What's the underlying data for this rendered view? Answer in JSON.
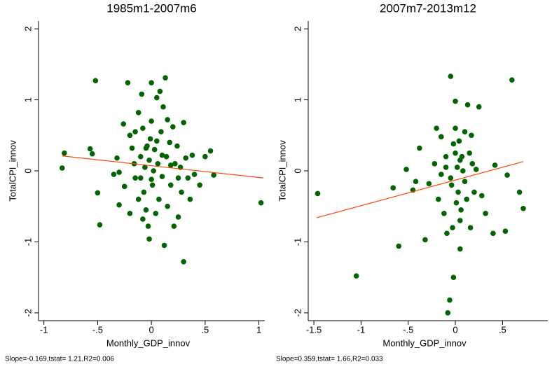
{
  "chart_data": [
    {
      "type": "scatter",
      "title": "1985m1-2007m6",
      "x_label": "Monthly_GDP_innov",
      "y_label": "TotalCPI_innov",
      "note": "Slope=-0.169,tstat= 1.21,R2=0.006",
      "xlim": [
        -1.05,
        1.055
      ],
      "ylim": [
        -2.11,
        2.11
      ],
      "xticks": [
        -1,
        {
          "value": -0.5,
          "label": "-.5"
        },
        0,
        {
          "value": 0.5,
          "label": ".5"
        },
        1
      ],
      "yticks": [
        -2,
        -1,
        0,
        1,
        2
      ],
      "series": [
        {
          "color": "#006400",
          "x": [
            -0.83,
            -0.81,
            -0.57,
            -0.55,
            -0.52,
            -0.5,
            -0.48,
            -0.32,
            -0.3,
            -0.3,
            -0.26,
            -0.22,
            -0.2,
            -0.18,
            -0.16,
            -0.15,
            -0.12,
            -0.12,
            -0.1,
            -0.1,
            -0.09,
            -0.08,
            -0.07,
            -0.06,
            -0.05,
            -0.04,
            -0.03,
            -0.02,
            -0.02,
            -0.01,
            0,
            0,
            0.01,
            0.02,
            0.03,
            0.04,
            0.05,
            0.06,
            0.07,
            0.08,
            0.09,
            0.1,
            0.11,
            0.12,
            0.13,
            0.14,
            0.15,
            0.17,
            0.18,
            0.2,
            0.21,
            0.22,
            0.24,
            0.25,
            0.27,
            0.28,
            0.3,
            0.3,
            0.32,
            0.34,
            0.36,
            0.38,
            0.4,
            0.45,
            0.5,
            0.55,
            0.58,
            1.02,
            -0.25,
            -0.2,
            -0.15,
            0,
            0.05,
            -0.08,
            0.1,
            0.18,
            0.25,
            -0.35,
            0.15,
            -0.05
          ],
          "values": [
            0.04,
            0.25,
            0.31,
            0.24,
            1.27,
            -0.31,
            -0.76,
            0.18,
            -0.02,
            -0.48,
            0.66,
            1.24,
            0.5,
            0.32,
            0.1,
            -0.1,
            0.82,
            -0.4,
            -0.1,
            0.2,
            1.08,
            0.6,
            -0.3,
            0.05,
            -0.55,
            0.35,
            -0.78,
            0.15,
            -0.96,
            0.45,
            1.24,
            0.7,
            -0.2,
            0,
            0.3,
            -0.6,
            1.03,
            0.1,
            -0.4,
            1.12,
            0.55,
            -0.08,
            0.9,
            -1.05,
            1.31,
            0.2,
            -0.5,
            0.4,
            -0.2,
            0.62,
            -0.78,
            0.1,
            0.35,
            -0.65,
            0.05,
            -0.3,
            0.68,
            -1.28,
            0.18,
            -0.1,
            -0.4,
            0.22,
            -0.05,
            -0.2,
            0.2,
            0.28,
            -0.06,
            -0.45,
            -0.22,
            -0.6,
            0.55,
            -0.12,
            0.42,
            -0.68,
            0.22,
            0.08,
            -0.1,
            -0.05,
            0.72,
            0.32
          ]
        }
      ],
      "fit_line": {
        "color": "#ff4500",
        "x": [
          -0.83,
          1.04
        ],
        "values": [
          0.21,
          -0.1
        ]
      }
    },
    {
      "type": "scatter",
      "title": "2007m7-2013m12",
      "x_label": "Monthly_GDP_innov",
      "y_label": "TotalCPI_innov",
      "note": "Slope=0.359,tstat= 1.66,R2=0.033",
      "xlim": [
        -1.56,
        0.98
      ],
      "ylim": [
        -2.11,
        2.11
      ],
      "xticks": [
        -1.5,
        -1,
        {
          "value": -0.5,
          "label": "-.5"
        },
        0,
        {
          "value": 0.5,
          "label": ".5"
        }
      ],
      "yticks": [
        -2,
        -1,
        0,
        1,
        2
      ],
      "series": [
        {
          "color": "#006400",
          "x": [
            -1.46,
            -1.05,
            -0.66,
            -0.6,
            -0.52,
            -0.45,
            -0.42,
            -0.38,
            -0.32,
            -0.28,
            -0.22,
            -0.2,
            -0.18,
            -0.15,
            -0.12,
            -0.1,
            -0.09,
            -0.08,
            -0.06,
            -0.05,
            -0.04,
            -0.03,
            -0.02,
            -0.02,
            0,
            0,
            0.01,
            0.02,
            0.03,
            0.04,
            0.05,
            0.05,
            0.06,
            0.07,
            0.08,
            0.1,
            0.12,
            0.13,
            0.15,
            0.16,
            0.17,
            0.18,
            0.2,
            0.22,
            0.25,
            0.28,
            0.32,
            0.4,
            0.42,
            0.53,
            0.55,
            0.6,
            0.68,
            0.72,
            -0.05,
            0.1,
            -0.15,
            0,
            0.05,
            -0.1
          ],
          "values": [
            -0.32,
            -1.48,
            -0.24,
            -1.06,
            0.02,
            -0.27,
            -0.15,
            0.32,
            -0.97,
            -0.18,
            0.1,
            0.6,
            -0.4,
            0.48,
            -0.6,
            0.2,
            -0.88,
            -2,
            -1.82,
            1.33,
            -0.2,
            -0.8,
            0.38,
            -1.5,
            0.98,
            0.6,
            -0.45,
            0.05,
            -0.3,
            0.42,
            -0.7,
            -1.1,
            -0.55,
            0.2,
            0,
            0.55,
            -0.4,
            0.93,
            0.25,
            -0.8,
            0.5,
            0.1,
            -0.3,
            0.02,
            0.9,
            -0.35,
            -0.6,
            -0.88,
            0.08,
            -0.85,
            -0.06,
            1.28,
            -0.3,
            -0.53,
            -0.1,
            -0.15,
            -0.05,
            0.25,
            0.15,
            0.05
          ]
        }
      ],
      "fit_line": {
        "color": "#ff4500",
        "x": [
          -1.47,
          0.72
        ],
        "values": [
          -0.66,
          0.13
        ]
      }
    }
  ]
}
